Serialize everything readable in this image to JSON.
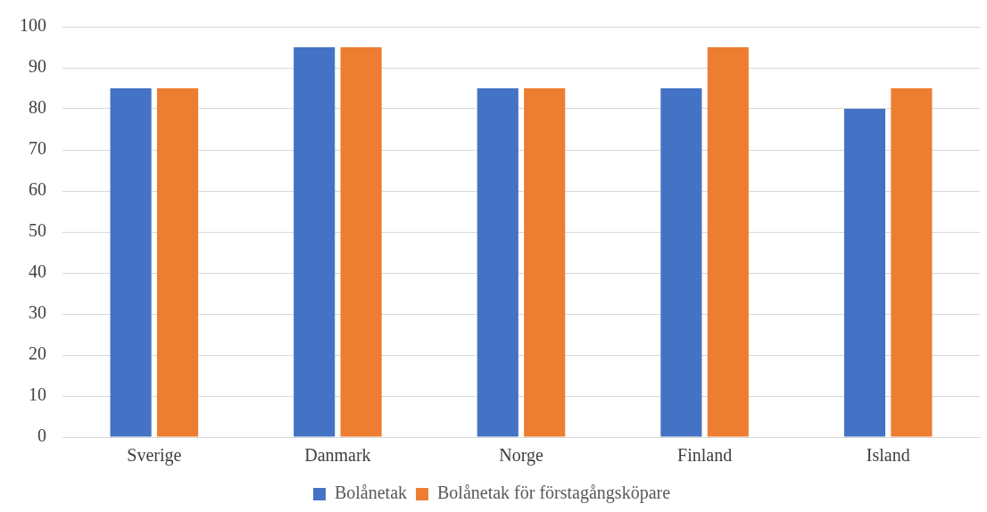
{
  "chart_data": {
    "type": "bar",
    "categories": [
      "Sverige",
      "Danmark",
      "Norge",
      "Finland",
      "Island"
    ],
    "series": [
      {
        "name": "Bolånetak",
        "color": "#4472c4",
        "values": [
          85,
          95,
          85,
          85,
          80
        ]
      },
      {
        "name": "Bolånetak för förstagångsköpare",
        "color": "#ed7d31",
        "values": [
          85,
          95,
          85,
          95,
          85
        ]
      }
    ],
    "ylim": [
      0,
      100
    ],
    "yticks": [
      0,
      10,
      20,
      30,
      40,
      50,
      60,
      70,
      80,
      90,
      100
    ],
    "grid": "y",
    "legend": "bottom"
  }
}
